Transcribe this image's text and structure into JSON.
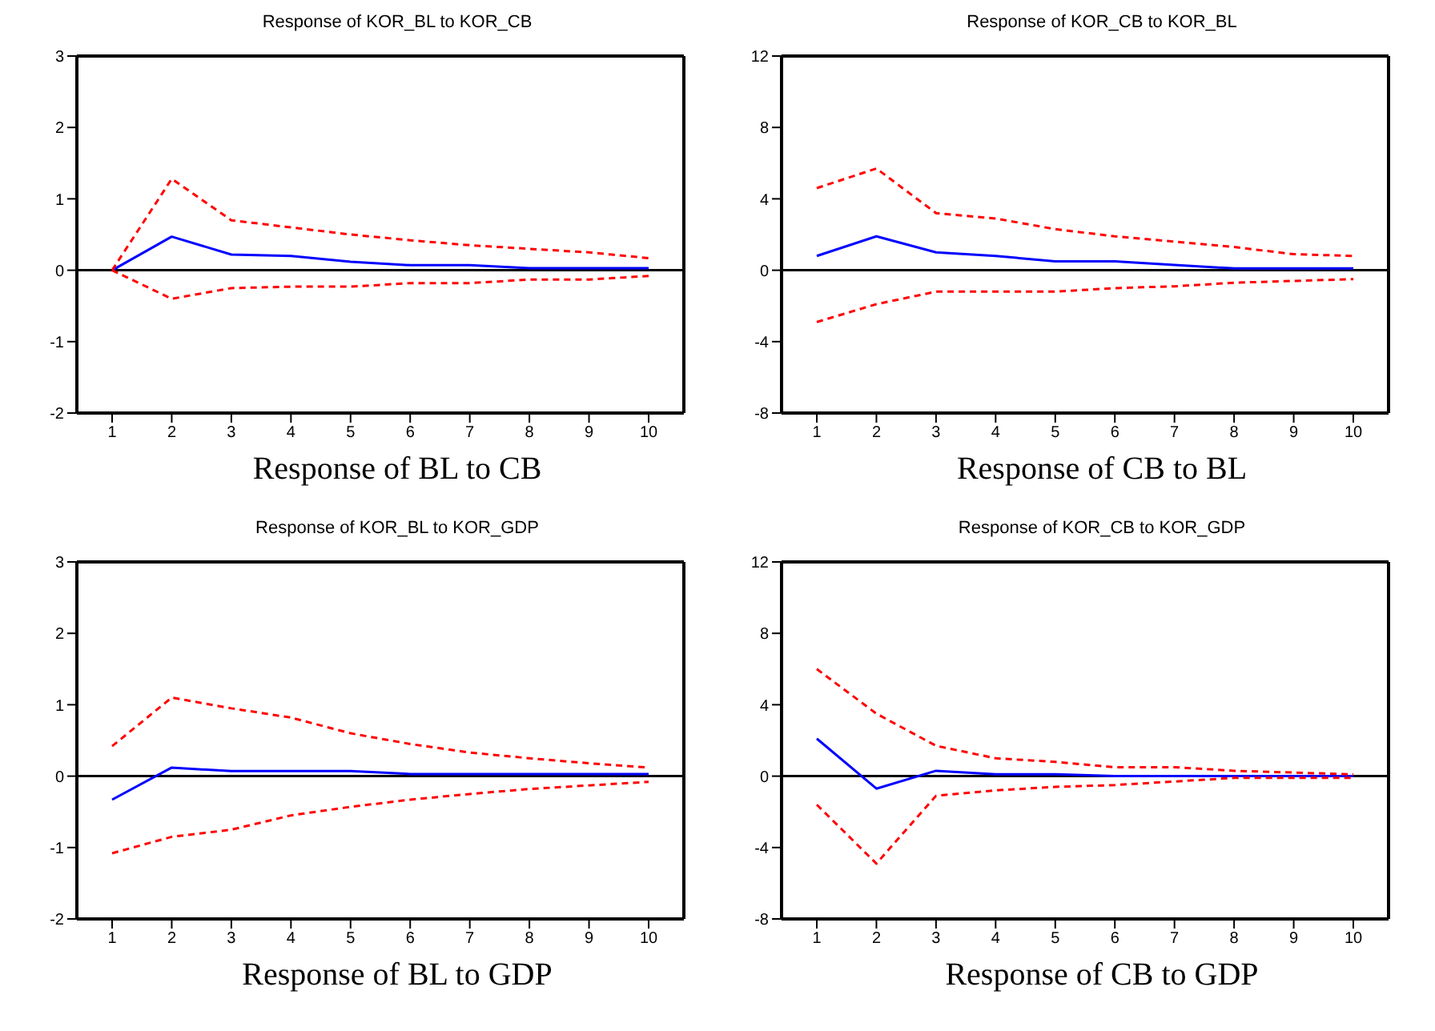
{
  "chart_data": [
    {
      "type": "line",
      "title": "Response of KOR_BL to KOR_CB",
      "annotations": [
        "Response of BL to CB"
      ],
      "categories": [
        "1",
        "2",
        "3",
        "4",
        "5",
        "6",
        "7",
        "8",
        "9",
        "10"
      ],
      "ylim": [
        -2,
        3
      ],
      "yticks": [
        -2,
        -1,
        0,
        1,
        2,
        3
      ],
      "grid": false,
      "legend": false,
      "marker": "none",
      "ref_lines": [
        {
          "axis": "y",
          "value": 0,
          "color": "#000000"
        }
      ],
      "series": [
        {
          "color": "#0000ff",
          "line_style": "solid",
          "values": [
            0,
            0.47,
            0.22,
            0.2,
            0.12,
            0.07,
            0.07,
            0.03,
            0.03,
            0.03
          ]
        },
        {
          "color": "#ff0000",
          "line_style": "dashed",
          "values": [
            0,
            1.28,
            0.7,
            0.6,
            0.5,
            0.42,
            0.35,
            0.3,
            0.25,
            0.17
          ]
        },
        {
          "color": "#ff0000",
          "line_style": "dashed",
          "values": [
            0,
            -0.4,
            -0.25,
            -0.23,
            -0.23,
            -0.18,
            -0.18,
            -0.13,
            -0.13,
            -0.08
          ]
        }
      ]
    },
    {
      "type": "line",
      "title": "Response of KOR_CB to KOR_BL",
      "annotations": [
        "Response of CB to BL"
      ],
      "categories": [
        "1",
        "2",
        "3",
        "4",
        "5",
        "6",
        "7",
        "8",
        "9",
        "10"
      ],
      "ylim": [
        -8,
        12
      ],
      "yticks": [
        -8,
        -4,
        0,
        4,
        8,
        12
      ],
      "grid": false,
      "legend": false,
      "marker": "none",
      "ref_lines": [
        {
          "axis": "y",
          "value": 0,
          "color": "#000000"
        }
      ],
      "series": [
        {
          "color": "#0000ff",
          "line_style": "solid",
          "values": [
            0.8,
            1.9,
            1.0,
            0.8,
            0.5,
            0.5,
            0.3,
            0.1,
            0.1,
            0.1
          ]
        },
        {
          "color": "#ff0000",
          "line_style": "dashed",
          "values": [
            4.6,
            5.7,
            3.2,
            2.9,
            2.3,
            1.9,
            1.6,
            1.3,
            0.9,
            0.8
          ]
        },
        {
          "color": "#ff0000",
          "line_style": "dashed",
          "values": [
            -2.9,
            -1.9,
            -1.2,
            -1.2,
            -1.2,
            -1.0,
            -0.9,
            -0.7,
            -0.6,
            -0.5
          ]
        }
      ]
    },
    {
      "type": "line",
      "title": "Response of KOR_BL to KOR_GDP",
      "annotations": [
        "Response of BL to GDP"
      ],
      "categories": [
        "1",
        "2",
        "3",
        "4",
        "5",
        "6",
        "7",
        "8",
        "9",
        "10"
      ],
      "ylim": [
        -2,
        3
      ],
      "yticks": [
        -2,
        -1,
        0,
        1,
        2,
        3
      ],
      "grid": false,
      "legend": false,
      "marker": "none",
      "ref_lines": [
        {
          "axis": "y",
          "value": 0,
          "color": "#000000"
        }
      ],
      "series": [
        {
          "color": "#0000ff",
          "line_style": "solid",
          "values": [
            -0.33,
            0.12,
            0.07,
            0.07,
            0.07,
            0.03,
            0.03,
            0.03,
            0.03,
            0.03
          ]
        },
        {
          "color": "#ff0000",
          "line_style": "dashed",
          "values": [
            0.42,
            1.1,
            0.95,
            0.82,
            0.6,
            0.45,
            0.33,
            0.25,
            0.18,
            0.12
          ]
        },
        {
          "color": "#ff0000",
          "line_style": "dashed",
          "values": [
            -1.08,
            -0.85,
            -0.75,
            -0.55,
            -0.43,
            -0.33,
            -0.25,
            -0.18,
            -0.13,
            -0.08
          ]
        }
      ]
    },
    {
      "type": "line",
      "title": "Response of KOR_CB to KOR_GDP",
      "annotations": [
        "Response of CB to GDP"
      ],
      "categories": [
        "1",
        "2",
        "3",
        "4",
        "5",
        "6",
        "7",
        "8",
        "9",
        "10"
      ],
      "ylim": [
        -8,
        12
      ],
      "yticks": [
        -8,
        -4,
        0,
        4,
        8,
        12
      ],
      "grid": false,
      "legend": false,
      "marker": "none",
      "ref_lines": [
        {
          "axis": "y",
          "value": 0,
          "color": "#000000"
        }
      ],
      "series": [
        {
          "color": "#0000ff",
          "line_style": "solid",
          "values": [
            2.1,
            -0.7,
            0.3,
            0.1,
            0.1,
            0,
            0,
            0,
            0,
            0
          ]
        },
        {
          "color": "#ff0000",
          "line_style": "dashed",
          "values": [
            6.0,
            3.5,
            1.7,
            1.0,
            0.8,
            0.5,
            0.5,
            0.3,
            0.2,
            0.1
          ]
        },
        {
          "color": "#ff0000",
          "line_style": "dashed",
          "values": [
            -1.6,
            -4.9,
            -1.1,
            -0.8,
            -0.6,
            -0.5,
            -0.3,
            -0.1,
            -0.1,
            -0.1
          ]
        }
      ]
    }
  ]
}
